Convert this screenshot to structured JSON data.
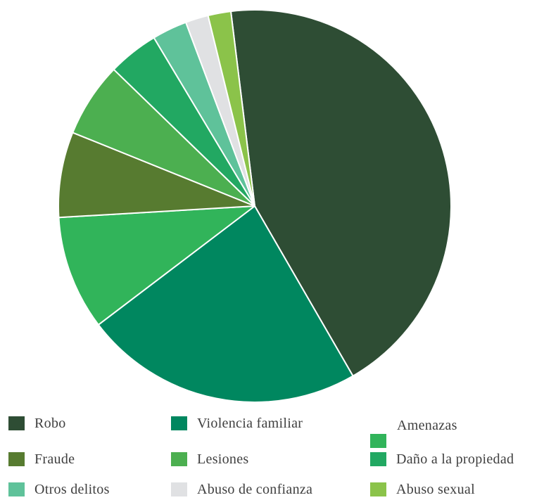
{
  "chart_data": {
    "type": "pie",
    "start_angle_deg": -7,
    "direction": "clockwise",
    "title": "",
    "slices": [
      {
        "label": "Robo",
        "value": 44.0,
        "color": "#2e4d34"
      },
      {
        "label": "Violencia familiar",
        "value": 23.2,
        "color": "#00875f"
      },
      {
        "label": "Amenazas",
        "value": 9.5,
        "color": "#31b45a"
      },
      {
        "label": "Fraude",
        "value": 7.1,
        "color": "#577b30"
      },
      {
        "label": "Lesiones",
        "value": 6.2,
        "color": "#4caf50"
      },
      {
        "label": "Daño a la propiedad",
        "value": 4.2,
        "color": "#22a862"
      },
      {
        "label": "Otros delitos",
        "value": 2.9,
        "color": "#5fc29a"
      },
      {
        "label": "Abuso de confianza",
        "value": 1.9,
        "color": "#e0e1e3"
      },
      {
        "label": "Abuso sexual",
        "value": 1.9,
        "color": "#8bc34a"
      }
    ],
    "legend_position": "bottom"
  }
}
